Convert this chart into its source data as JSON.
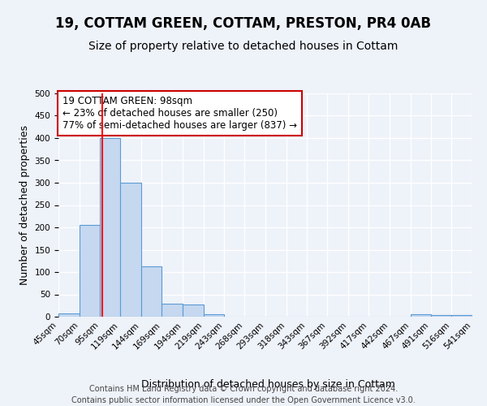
{
  "title": "19, COTTAM GREEN, COTTAM, PRESTON, PR4 0AB",
  "subtitle": "Size of property relative to detached houses in Cottam",
  "xlabel": "Distribution of detached houses by size in Cottam",
  "ylabel": "Number of detached properties",
  "bin_edges": [
    45,
    70,
    95,
    119,
    144,
    169,
    194,
    219,
    243,
    268,
    293,
    318,
    343,
    367,
    392,
    417,
    442,
    467,
    491,
    516,
    541
  ],
  "bar_heights": [
    8,
    205,
    400,
    300,
    113,
    30,
    27,
    6,
    0,
    0,
    0,
    0,
    0,
    0,
    0,
    0,
    0,
    5,
    3,
    3
  ],
  "bar_color": "#c5d8f0",
  "bar_edge_color": "#5b9bd5",
  "red_line_x": 98,
  "annotation_title": "19 COTTAM GREEN: 98sqm",
  "annotation_line1": "← 23% of detached houses are smaller (250)",
  "annotation_line2": "77% of semi-detached houses are larger (837) →",
  "annotation_box_edge": "#cc0000",
  "ylim": [
    0,
    500
  ],
  "yticks": [
    0,
    50,
    100,
    150,
    200,
    250,
    300,
    350,
    400,
    450,
    500
  ],
  "tick_labels": [
    "45sqm",
    "70sqm",
    "95sqm",
    "119sqm",
    "144sqm",
    "169sqm",
    "194sqm",
    "219sqm",
    "243sqm",
    "268sqm",
    "293sqm",
    "318sqm",
    "343sqm",
    "367sqm",
    "392sqm",
    "417sqm",
    "442sqm",
    "467sqm",
    "491sqm",
    "516sqm",
    "541sqm"
  ],
  "footer1": "Contains HM Land Registry data © Crown copyright and database right 2024.",
  "footer2": "Contains public sector information licensed under the Open Government Licence v3.0.",
  "bg_color": "#eef2f9",
  "plot_bg_color": "#eef2f9",
  "grid_color": "#ffffff",
  "title_fontsize": 12,
  "subtitle_fontsize": 10,
  "axis_label_fontsize": 9,
  "tick_fontsize": 7.5,
  "footer_fontsize": 7
}
